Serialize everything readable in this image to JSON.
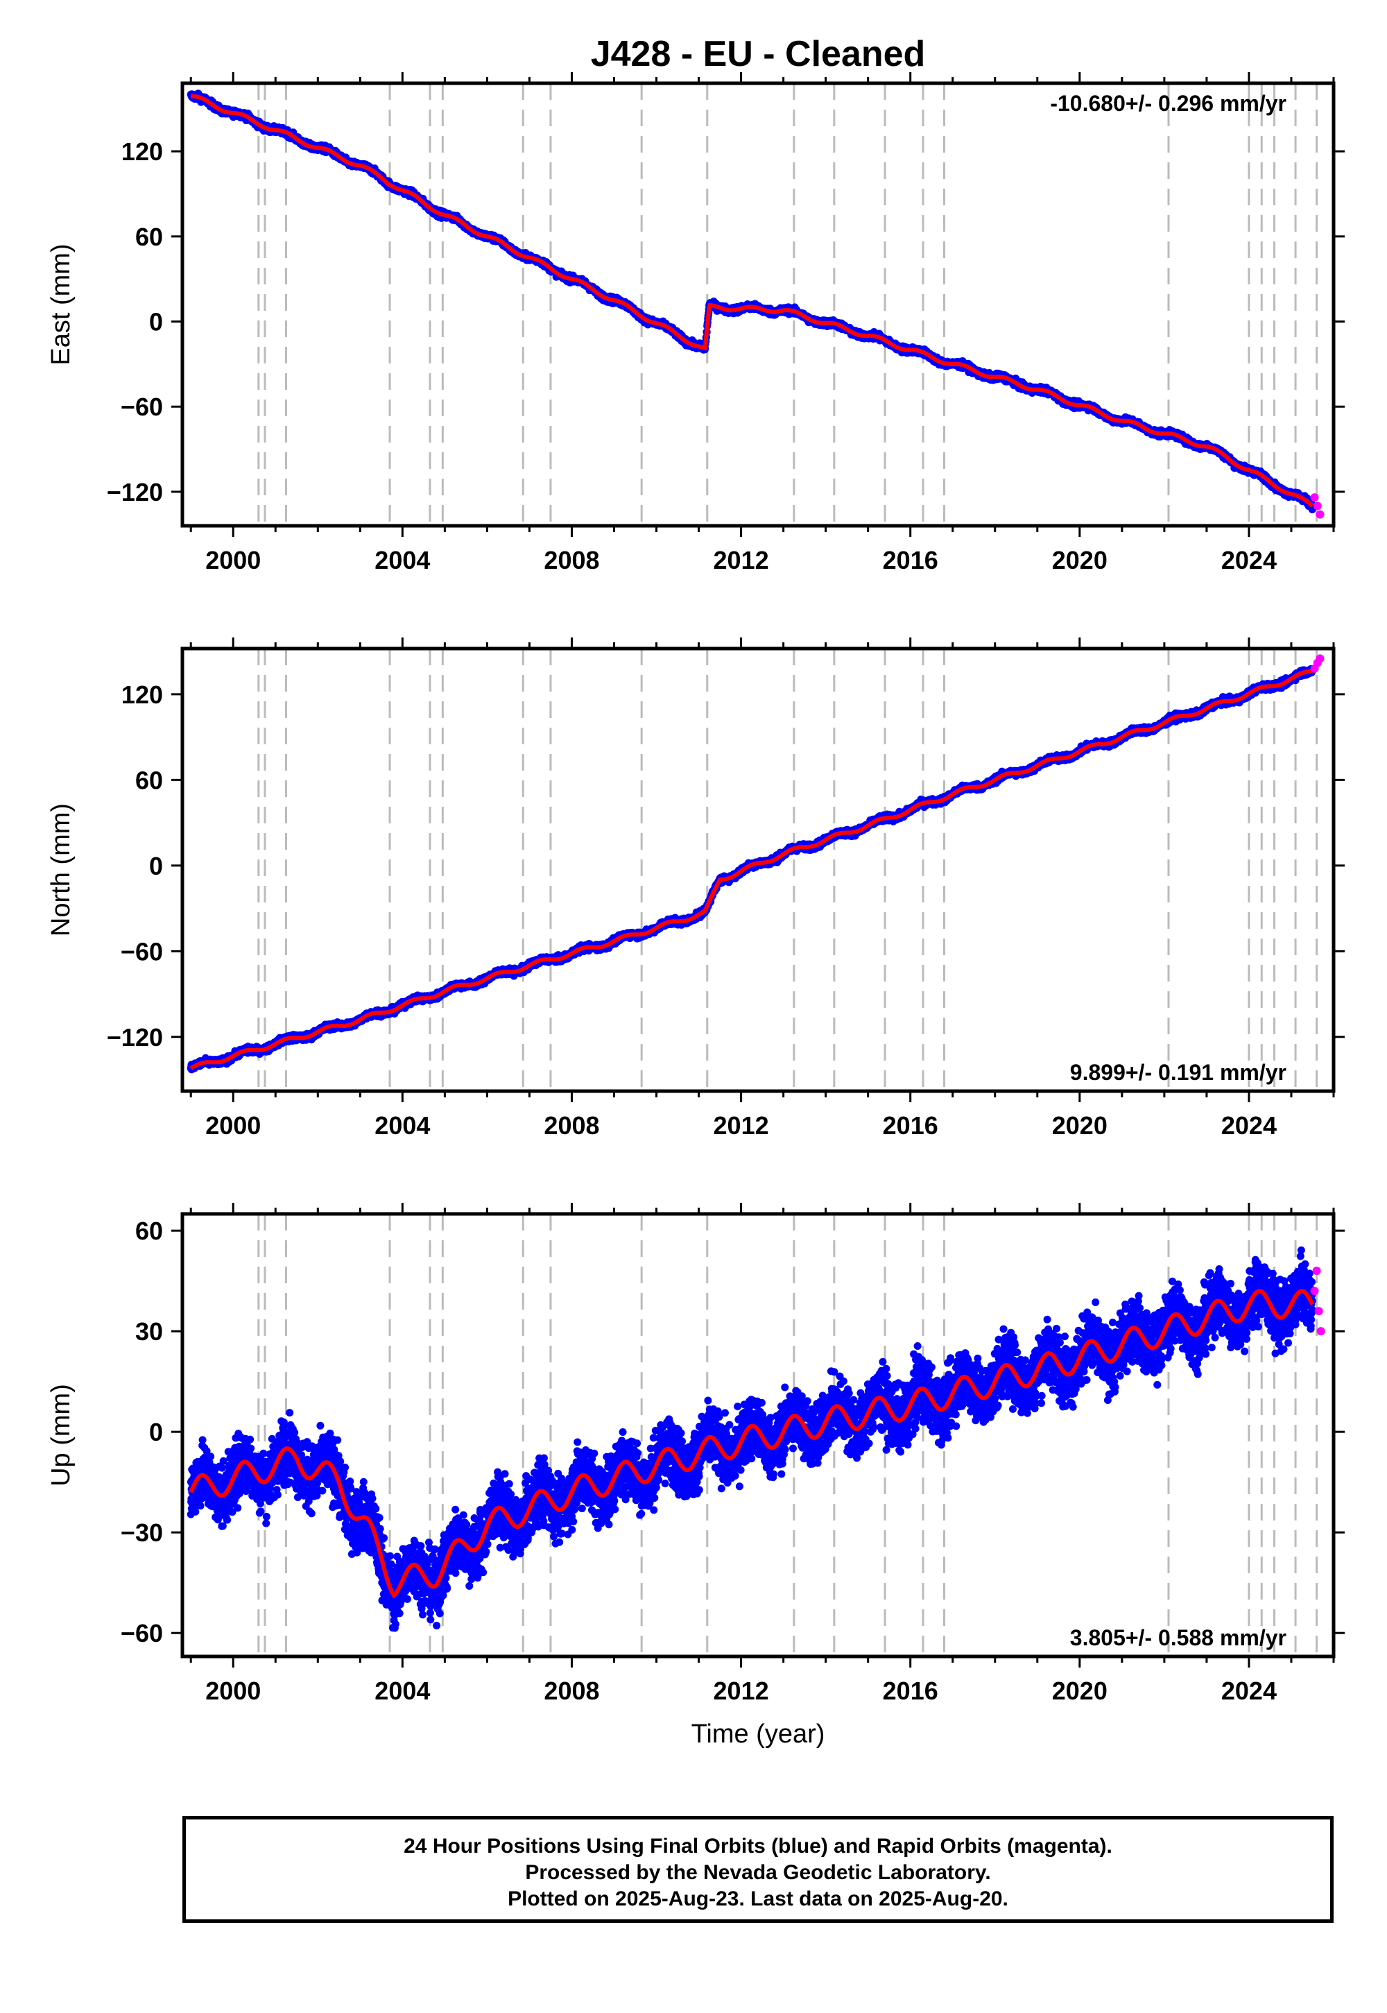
{
  "title": "J428  - EU - Cleaned",
  "xlabel": "Time (year)",
  "x_ticks": [
    2000,
    2004,
    2008,
    2012,
    2016,
    2020,
    2024
  ],
  "footer": {
    "line1": "24 Hour Positions Using Final Orbits (blue) and Rapid Orbits (magenta).",
    "line2": "Processed by the Nevada Geodetic Laboratory.",
    "line3": "Plotted on 2025-Aug-23. Last data on 2025-Aug-20."
  },
  "colors": {
    "final_orbits": "#0000ff",
    "rapid_orbits": "#ff00ff",
    "model": "#ff0000",
    "event_lines": "#bbbbbb"
  },
  "chart_data": [
    {
      "type": "scatter",
      "panel": "east",
      "ylabel": "East (mm)",
      "rate_label": "-10.680+/- 0.296 mm/yr",
      "rate_position": "top-right",
      "xlim": [
        1998.8,
        2026.0
      ],
      "ylim": [
        -144,
        168
      ],
      "y_ticks": [
        120,
        60,
        0,
        -60,
        -120
      ],
      "event_lines": [
        2000.6,
        2000.75,
        2001.25,
        2003.7,
        2004.65,
        2004.95,
        2006.85,
        2007.5,
        2009.65,
        2011.2,
        2013.25,
        2014.2,
        2015.4,
        2016.3,
        2016.8,
        2022.1,
        2024.0,
        2024.3,
        2024.6,
        2025.1,
        2025.6
      ],
      "series": [
        {
          "kind": "final_orbits",
          "x": [
            1999.0,
            2001.0,
            2003.0,
            2005.0,
            2007.0,
            2009.0,
            2011.15,
            2011.25,
            2013.0,
            2015.0,
            2017.0,
            2019.0,
            2021.0,
            2023.0,
            2025.5
          ],
          "y": [
            159,
            135,
            110,
            75,
            45,
            15,
            -20,
            10,
            8,
            -10,
            -30,
            -48,
            -70,
            -88,
            -130
          ]
        },
        {
          "kind": "rapid_orbits",
          "x": [
            2025.55,
            2025.62,
            2025.68
          ],
          "y": [
            -124,
            -130,
            -136
          ]
        }
      ]
    },
    {
      "type": "scatter",
      "panel": "north",
      "ylabel": "North (mm)",
      "rate_label": "9.899+/- 0.191 mm/yr",
      "rate_position": "bottom-right",
      "xlim": [
        1998.8,
        2026.0
      ],
      "ylim": [
        -158,
        152
      ],
      "y_ticks": [
        120,
        60,
        0,
        -60,
        -120
      ],
      "event_lines": [
        2000.6,
        2000.75,
        2001.25,
        2003.7,
        2004.65,
        2004.95,
        2006.85,
        2007.5,
        2009.65,
        2011.2,
        2013.25,
        2014.2,
        2015.4,
        2016.3,
        2016.8,
        2022.1,
        2024.0,
        2024.3,
        2024.6,
        2025.1,
        2025.6
      ],
      "series": [
        {
          "kind": "final_orbits",
          "x": [
            1999.0,
            2001.0,
            2003.0,
            2005.0,
            2007.0,
            2009.0,
            2011.15,
            2011.5,
            2013.0,
            2015.0,
            2017.0,
            2019.0,
            2021.0,
            2023.0,
            2025.5
          ],
          "y": [
            -142,
            -125,
            -108,
            -88,
            -70,
            -53,
            -33,
            -10,
            8,
            28,
            50,
            70,
            90,
            110,
            136
          ]
        },
        {
          "kind": "rapid_orbits",
          "x": [
            2025.55,
            2025.62,
            2025.68
          ],
          "y": [
            138,
            142,
            145
          ]
        }
      ]
    },
    {
      "type": "scatter",
      "panel": "up",
      "ylabel": "Up (mm)",
      "rate_label": "3.805+/- 0.588 mm/yr",
      "rate_position": "bottom-right",
      "xlim": [
        1998.8,
        2026.0
      ],
      "ylim": [
        -67,
        65
      ],
      "y_ticks": [
        60,
        30,
        0,
        -30,
        -60
      ],
      "event_lines": [
        2000.6,
        2000.75,
        2001.25,
        2003.7,
        2004.65,
        2004.95,
        2006.85,
        2007.5,
        2009.65,
        2011.2,
        2013.25,
        2014.2,
        2015.4,
        2016.3,
        2016.8,
        2022.1,
        2024.0,
        2024.3,
        2024.6,
        2025.1,
        2025.6
      ],
      "series": [
        {
          "kind": "final_orbits",
          "x": [
            1999.0,
            2000.5,
            2001.5,
            2002.5,
            2003.2,
            2003.8,
            2004.8,
            2006.0,
            2008.0,
            2010.0,
            2012.0,
            2014.0,
            2016.0,
            2018.0,
            2020.0,
            2022.0,
            2024.0,
            2025.5
          ],
          "y": [
            -18,
            -12,
            -8,
            -15,
            -30,
            -45,
            -42,
            -28,
            -18,
            -10,
            -3,
            3,
            8,
            15,
            22,
            30,
            38,
            38
          ]
        },
        {
          "kind": "rapid_orbits",
          "x": [
            2025.55,
            2025.6,
            2025.65,
            2025.7
          ],
          "y": [
            42,
            48,
            36,
            30
          ]
        }
      ]
    }
  ]
}
